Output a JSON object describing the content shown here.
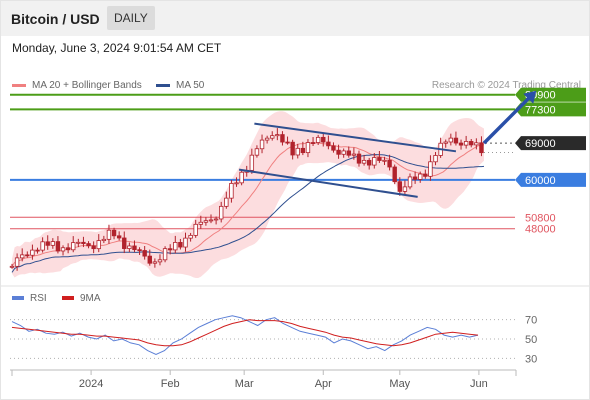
{
  "header": {
    "title": "Bitcoin / USD",
    "timeframe": "DAILY"
  },
  "datetime": "Monday, June 3, 2024 9:01:54 AM CET",
  "legend": {
    "ma20_label": "MA 20 + Bollinger Bands",
    "ma50_label": "MA 50",
    "credit": "Research © 2024 Trading Central"
  },
  "rsi_legend": {
    "rsi_label": "RSI",
    "ma_label": "9MA"
  },
  "colors": {
    "candle": "#b1222c",
    "bollinger": "#fbd7d9",
    "ma20": "#f08080",
    "ma50": "#2f4f8f",
    "resistance": "#4c9d18",
    "support": "#3a7de0",
    "pivot": "#2a2a2a",
    "minor": "#e05560",
    "rsi": "#5b7fd6",
    "rsi_ma": "#d01f1f"
  },
  "chart_data": [
    {
      "type": "candlestick",
      "ylim": [
        30000,
        85000
      ],
      "x_ticks": [
        "2024",
        "Feb",
        "Mar",
        "Apr",
        "May",
        "Jun"
      ],
      "approx_closes": [
        {
          "date": "2023-12-01",
          "close": 38700
        },
        {
          "date": "2023-12-10",
          "close": 43800
        },
        {
          "date": "2023-12-20",
          "close": 43600
        },
        {
          "date": "2024-01-01",
          "close": 44100
        },
        {
          "date": "2024-01-10",
          "close": 46600
        },
        {
          "date": "2024-01-20",
          "close": 41600
        },
        {
          "date": "2024-01-25",
          "close": 40000
        },
        {
          "date": "2024-02-01",
          "close": 42600
        },
        {
          "date": "2024-02-10",
          "close": 47600
        },
        {
          "date": "2024-02-20",
          "close": 52000
        },
        {
          "date": "2024-02-28",
          "close": 61000
        },
        {
          "date": "2024-03-05",
          "close": 66500
        },
        {
          "date": "2024-03-13",
          "close": 72500
        },
        {
          "date": "2024-03-20",
          "close": 66000
        },
        {
          "date": "2024-03-27",
          "close": 69800
        },
        {
          "date": "2024-04-05",
          "close": 68000
        },
        {
          "date": "2024-04-13",
          "close": 65000
        },
        {
          "date": "2024-04-20",
          "close": 64900
        },
        {
          "date": "2024-04-27",
          "close": 63500
        },
        {
          "date": "2024-05-01",
          "close": 57500
        },
        {
          "date": "2024-05-10",
          "close": 61500
        },
        {
          "date": "2024-05-15",
          "close": 66200
        },
        {
          "date": "2024-05-21",
          "close": 70500
        },
        {
          "date": "2024-05-28",
          "close": 68300
        },
        {
          "date": "2024-06-02",
          "close": 67800
        }
      ],
      "levels": [
        {
          "value": 80900,
          "label": "80900",
          "kind": "resistance"
        },
        {
          "value": 77300,
          "label": "77300",
          "kind": "resistance"
        },
        {
          "value": 69000,
          "label": "69000",
          "kind": "pivot"
        },
        {
          "value": 60000,
          "label": "60000",
          "kind": "support"
        },
        {
          "value": 50800,
          "label": "50800",
          "kind": "minor"
        },
        {
          "value": 48000,
          "label": "48000",
          "kind": "minor"
        }
      ],
      "channel": [
        {
          "date1": "2024-03-05",
          "y1": 73800,
          "date2": "2024-05-23",
          "y2": 67000
        },
        {
          "date1": "2024-02-28",
          "y1": 62500,
          "date2": "2024-05-08",
          "y2": 55800
        }
      ],
      "target_arrow": {
        "date1": "2024-06-03",
        "y1": 69000,
        "date2": "2024-06-18",
        "y2": 80900
      }
    },
    {
      "type": "line",
      "ylim": [
        20,
        80
      ],
      "y_ticks": [
        70,
        50,
        30
      ],
      "series": [
        {
          "name": "RSI",
          "values": [
            68,
            64,
            58,
            60,
            56,
            55,
            57,
            53,
            56,
            52,
            50,
            54,
            48,
            50,
            46,
            44,
            38,
            34,
            38,
            46,
            50,
            56,
            62,
            66,
            70,
            72,
            74,
            72,
            68,
            64,
            70,
            72,
            66,
            62,
            58,
            56,
            54,
            52,
            46,
            50,
            48,
            44,
            40,
            42,
            38,
            44,
            48,
            54,
            58,
            62,
            60,
            54,
            52,
            54,
            52,
            54
          ]
        },
        {
          "name": "9MA",
          "values": [
            62,
            61,
            60,
            59,
            58,
            57,
            56,
            55,
            55,
            54,
            53,
            53,
            52,
            51,
            50,
            49,
            46,
            44,
            43,
            43,
            44,
            47,
            51,
            55,
            59,
            63,
            66,
            68,
            70,
            69,
            69,
            69,
            68,
            66,
            63,
            61,
            59,
            57,
            54,
            52,
            51,
            49,
            47,
            45,
            44,
            43,
            44,
            46,
            49,
            52,
            55,
            56,
            57,
            56,
            55,
            54
          ]
        }
      ]
    }
  ]
}
